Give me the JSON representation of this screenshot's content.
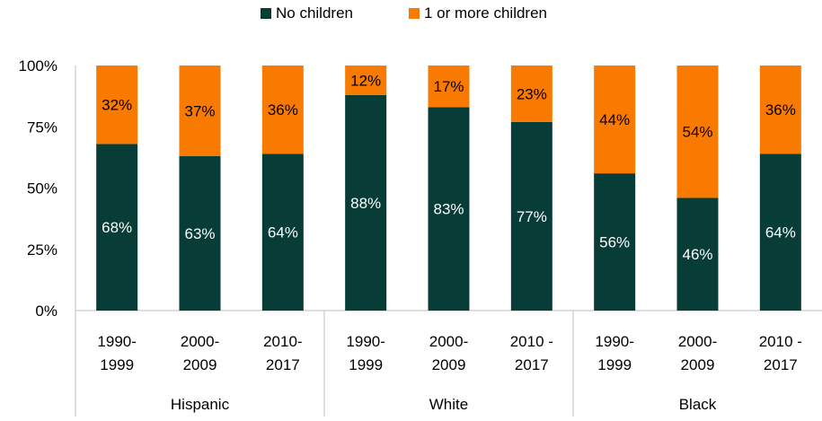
{
  "chart_data": {
    "type": "bar",
    "stacked": true,
    "percent_stacked": true,
    "legend_position": "top",
    "y_ticks": [
      "0%",
      "25%",
      "50%",
      "75%",
      "100%"
    ],
    "ylim": [
      0,
      100
    ],
    "groups": [
      {
        "label": "Hispanic",
        "categories": [
          "1990-\n1999",
          "2000-\n2009",
          "2010-\n2017"
        ]
      },
      {
        "label": "White",
        "categories": [
          "1990-\n1999",
          "2000-\n2009",
          "2010 -\n2017"
        ]
      },
      {
        "label": "Black",
        "categories": [
          "1990-\n1999",
          "2000-\n2009",
          "2010 -\n2017"
        ]
      }
    ],
    "series": [
      {
        "name": "No children",
        "color": "#073c37",
        "values": [
          68,
          63,
          64,
          88,
          83,
          77,
          56,
          46,
          64
        ],
        "labels": [
          "68%",
          "63%",
          "64%",
          "88%",
          "83%",
          "77%",
          "56%",
          "46%",
          "64%"
        ]
      },
      {
        "name": "1 or more children",
        "color": "#f97a00",
        "values": [
          32,
          37,
          36,
          12,
          17,
          23,
          44,
          54,
          36
        ],
        "labels": [
          "32%",
          "37%",
          "36%",
          "12%",
          "17%",
          "23%",
          "44%",
          "54%",
          "36%"
        ]
      }
    ]
  }
}
